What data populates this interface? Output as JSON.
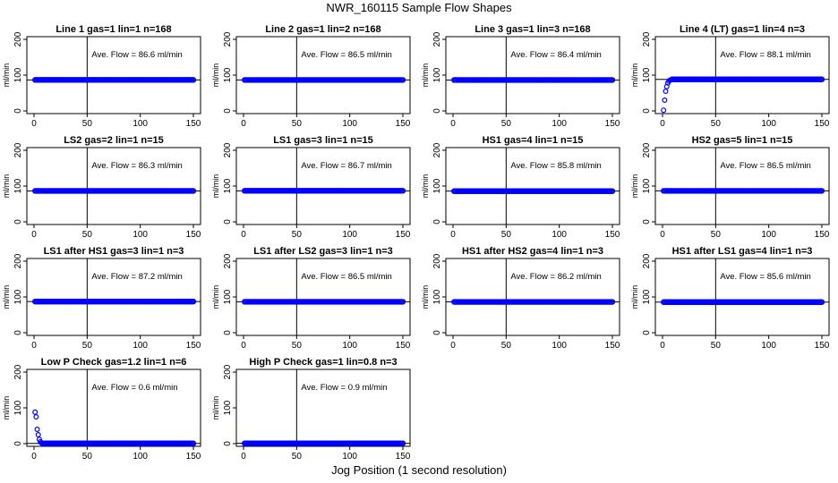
{
  "figure": {
    "title": "NWR_160115  Sample Flow Shapes",
    "xlabel": "Jog Position (1 second resolution)",
    "point_color": "#0000ff",
    "axis_color": "#000000"
  },
  "chart_data": [
    {
      "type": "scatter",
      "title": "Line 1 gas=1 lin=1 n=168",
      "ylabel": "ml/min",
      "annotation": "Ave. Flow =  86.6  ml/min",
      "xlim": [
        0,
        150
      ],
      "ylim": [
        0,
        200
      ],
      "xticks": [
        0,
        50,
        100,
        150
      ],
      "yticks": [
        0,
        100,
        200
      ],
      "vline": 50,
      "hline": 86.6,
      "series": [
        {
          "x_range": [
            1,
            150
          ],
          "y": 86.6
        }
      ],
      "outliers": []
    },
    {
      "type": "scatter",
      "title": "Line 2 gas=1 lin=2 n=168",
      "ylabel": "ml/min",
      "annotation": "Ave. Flow =  86.5  ml/min",
      "xlim": [
        0,
        150
      ],
      "ylim": [
        0,
        200
      ],
      "xticks": [
        0,
        50,
        100,
        150
      ],
      "yticks": [
        0,
        100,
        200
      ],
      "vline": 50,
      "hline": 86.5,
      "series": [
        {
          "x_range": [
            1,
            150
          ],
          "y": 86.5
        }
      ],
      "outliers": []
    },
    {
      "type": "scatter",
      "title": "Line 3 gas=1 lin=3 n=168",
      "ylabel": "ml/min",
      "annotation": "Ave. Flow =  86.4  ml/min",
      "xlim": [
        0,
        150
      ],
      "ylim": [
        0,
        200
      ],
      "xticks": [
        0,
        50,
        100,
        150
      ],
      "yticks": [
        0,
        100,
        200
      ],
      "vline": 50,
      "hline": 86.4,
      "series": [
        {
          "x_range": [
            1,
            150
          ],
          "y": 86.4
        }
      ],
      "outliers": []
    },
    {
      "type": "scatter",
      "title": "Line 4 (LT) gas=1 lin=4 n=3",
      "ylabel": "ml/min",
      "annotation": "Ave. Flow =  88.1  ml/min",
      "xlim": [
        0,
        150
      ],
      "ylim": [
        0,
        200
      ],
      "xticks": [
        0,
        50,
        100,
        150
      ],
      "yticks": [
        0,
        100,
        200
      ],
      "vline": 50,
      "hline": 88.1,
      "series": [
        {
          "x_range": [
            9,
            150
          ],
          "y": 88.1
        }
      ],
      "outliers": [
        [
          1,
          2
        ],
        [
          2,
          30
        ],
        [
          3,
          55
        ],
        [
          4,
          68
        ],
        [
          5,
          78
        ],
        [
          6,
          83
        ],
        [
          7,
          86
        ],
        [
          8,
          87
        ]
      ]
    },
    {
      "type": "scatter",
      "title": "LS2 gas=2 lin=1 n=15",
      "ylabel": "ml/min",
      "annotation": "Ave. Flow =  86.3  ml/min",
      "xlim": [
        0,
        150
      ],
      "ylim": [
        0,
        200
      ],
      "xticks": [
        0,
        50,
        100,
        150
      ],
      "yticks": [
        0,
        100,
        200
      ],
      "vline": 50,
      "hline": 86.3,
      "series": [
        {
          "x_range": [
            1,
            150
          ],
          "y": 86.3
        }
      ],
      "outliers": []
    },
    {
      "type": "scatter",
      "title": "LS1 gas=3 lin=1 n=15",
      "ylabel": "ml/min",
      "annotation": "Ave. Flow =  86.7  ml/min",
      "xlim": [
        0,
        150
      ],
      "ylim": [
        0,
        200
      ],
      "xticks": [
        0,
        50,
        100,
        150
      ],
      "yticks": [
        0,
        100,
        200
      ],
      "vline": 50,
      "hline": 86.7,
      "series": [
        {
          "x_range": [
            1,
            150
          ],
          "y": 86.7
        }
      ],
      "outliers": []
    },
    {
      "type": "scatter",
      "title": "HS1 gas=4 lin=1 n=15",
      "ylabel": "ml/min",
      "annotation": "Ave. Flow =  85.8  ml/min",
      "xlim": [
        0,
        150
      ],
      "ylim": [
        0,
        200
      ],
      "xticks": [
        0,
        50,
        100,
        150
      ],
      "yticks": [
        0,
        100,
        200
      ],
      "vline": 50,
      "hline": 85.8,
      "series": [
        {
          "x_range": [
            1,
            150
          ],
          "y": 85.8
        }
      ],
      "outliers": []
    },
    {
      "type": "scatter",
      "title": "HS2 gas=5 lin=1 n=15",
      "ylabel": "ml/min",
      "annotation": "Ave. Flow =  86.5  ml/min",
      "xlim": [
        0,
        150
      ],
      "ylim": [
        0,
        200
      ],
      "xticks": [
        0,
        50,
        100,
        150
      ],
      "yticks": [
        0,
        100,
        200
      ],
      "vline": 50,
      "hline": 86.5,
      "series": [
        {
          "x_range": [
            1,
            150
          ],
          "y": 86.5
        }
      ],
      "outliers": []
    },
    {
      "type": "scatter",
      "title": "LS1 after HS1 gas=3 lin=1 n=3",
      "ylabel": "ml/min",
      "annotation": "Ave. Flow =  87.2  ml/min",
      "xlim": [
        0,
        150
      ],
      "ylim": [
        0,
        200
      ],
      "xticks": [
        0,
        50,
        100,
        150
      ],
      "yticks": [
        0,
        100,
        200
      ],
      "vline": 50,
      "hline": 87.2,
      "series": [
        {
          "x_range": [
            1,
            150
          ],
          "y": 87.2
        }
      ],
      "outliers": []
    },
    {
      "type": "scatter",
      "title": "LS1 after LS2 gas=3 lin=1 n=3",
      "ylabel": "ml/min",
      "annotation": "Ave. Flow =  86.5  ml/min",
      "xlim": [
        0,
        150
      ],
      "ylim": [
        0,
        200
      ],
      "xticks": [
        0,
        50,
        100,
        150
      ],
      "yticks": [
        0,
        100,
        200
      ],
      "vline": 50,
      "hline": 86.5,
      "series": [
        {
          "x_range": [
            1,
            150
          ],
          "y": 86.5
        }
      ],
      "outliers": []
    },
    {
      "type": "scatter",
      "title": "HS1 after HS2 gas=4 lin=1 n=3",
      "ylabel": "ml/min",
      "annotation": "Ave. Flow =  86.2  ml/min",
      "xlim": [
        0,
        150
      ],
      "ylim": [
        0,
        200
      ],
      "xticks": [
        0,
        50,
        100,
        150
      ],
      "yticks": [
        0,
        100,
        200
      ],
      "vline": 50,
      "hline": 86.2,
      "series": [
        {
          "x_range": [
            1,
            150
          ],
          "y": 86.2
        }
      ],
      "outliers": []
    },
    {
      "type": "scatter",
      "title": "HS1 after LS1 gas=4 lin=1 n=3",
      "ylabel": "ml/min",
      "annotation": "Ave. Flow =  85.6  ml/min",
      "xlim": [
        0,
        150
      ],
      "ylim": [
        0,
        200
      ],
      "xticks": [
        0,
        50,
        100,
        150
      ],
      "yticks": [
        0,
        100,
        200
      ],
      "vline": 50,
      "hline": 85.6,
      "series": [
        {
          "x_range": [
            1,
            150
          ],
          "y": 85.6
        }
      ],
      "outliers": []
    },
    {
      "type": "scatter",
      "title": "Low P Check gas=1.2 lin=1 n=6",
      "ylabel": "ml/min",
      "annotation": "Ave. Flow =  0.6  ml/min",
      "xlim": [
        0,
        150
      ],
      "ylim": [
        0,
        200
      ],
      "xticks": [
        0,
        50,
        100,
        150
      ],
      "yticks": [
        0,
        100,
        200
      ],
      "vline": 50,
      "hline": 0.6,
      "series": [
        {
          "x_range": [
            8,
            150
          ],
          "y": 0.6
        }
      ],
      "outliers": [
        [
          1,
          88
        ],
        [
          2,
          75
        ],
        [
          3,
          40
        ],
        [
          4,
          25
        ],
        [
          5,
          12
        ],
        [
          6,
          5
        ],
        [
          7,
          2
        ]
      ]
    },
    {
      "type": "scatter",
      "title": "High P Check gas=1 lin=0.8 n=3",
      "ylabel": "ml/min",
      "annotation": "Ave. Flow =  0.9  ml/min",
      "xlim": [
        0,
        150
      ],
      "ylim": [
        0,
        200
      ],
      "xticks": [
        0,
        50,
        100,
        150
      ],
      "yticks": [
        0,
        100,
        200
      ],
      "vline": 50,
      "hline": 0.9,
      "series": [
        {
          "x_range": [
            1,
            150
          ],
          "y": 0.9
        }
      ],
      "outliers": []
    }
  ]
}
